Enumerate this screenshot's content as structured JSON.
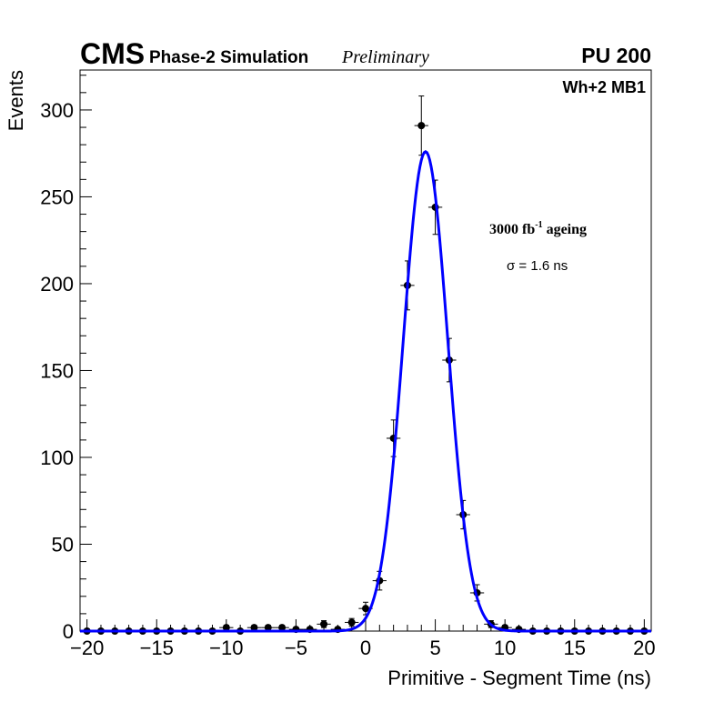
{
  "header": {
    "experiment": "CMS",
    "subtitle": "Phase-2 Simulation",
    "status": "Preliminary",
    "pileup": "PU 200"
  },
  "annotations": {
    "channel": "Wh+2 MB1",
    "ageing_prefix": "3000 fb",
    "ageing_exponent": "-1",
    "ageing_suffix": " ageing",
    "sigma_symbol": "σ",
    "sigma_text": " = 1.6 ns"
  },
  "colors": {
    "fit": "#0000ff",
    "points": "#000000",
    "axes": "#000000"
  },
  "chart_data": {
    "type": "scatter",
    "title": "",
    "xlabel": "Primitive - Segment Time (ns)",
    "ylabel": "Events",
    "xlim": [
      -20.5,
      20.5
    ],
    "ylim": [
      0,
      323
    ],
    "x_ticks": [
      -20,
      -15,
      -10,
      -5,
      0,
      5,
      10,
      15,
      20
    ],
    "x_tick_labels": [
      "−20",
      "−15",
      "−10",
      "−5",
      "0",
      "5",
      "10",
      "15",
      "20"
    ],
    "y_ticks": [
      0,
      50,
      100,
      150,
      200,
      250,
      300
    ],
    "y_tick_labels": [
      "0",
      "50",
      "100",
      "150",
      "200",
      "250",
      "300"
    ],
    "series": [
      {
        "name": "Simulation",
        "bin_halfwidth": 0.5,
        "x": [
          -20,
          -19,
          -18,
          -17,
          -16,
          -15,
          -14,
          -13,
          -12,
          -11,
          -10,
          -9,
          -8,
          -7,
          -6,
          -5,
          -4,
          -3,
          -2,
          -1,
          0,
          1,
          2,
          3,
          4,
          5,
          6,
          7,
          8,
          9,
          10,
          11,
          12,
          13,
          14,
          15,
          16,
          17,
          18,
          19,
          20
        ],
        "y": [
          0,
          0,
          0,
          0,
          0,
          0,
          0,
          0,
          0,
          0,
          2,
          0,
          2,
          2,
          2,
          1,
          1,
          4,
          1,
          5,
          13,
          29,
          111,
          199,
          291,
          244,
          156,
          67,
          22,
          4,
          2,
          1,
          0,
          0,
          0,
          0,
          0,
          0,
          0,
          0,
          0
        ]
      },
      {
        "name": "Gaussian fit",
        "amplitude": 276,
        "mean": 4.3,
        "sigma": 1.6
      }
    ]
  }
}
